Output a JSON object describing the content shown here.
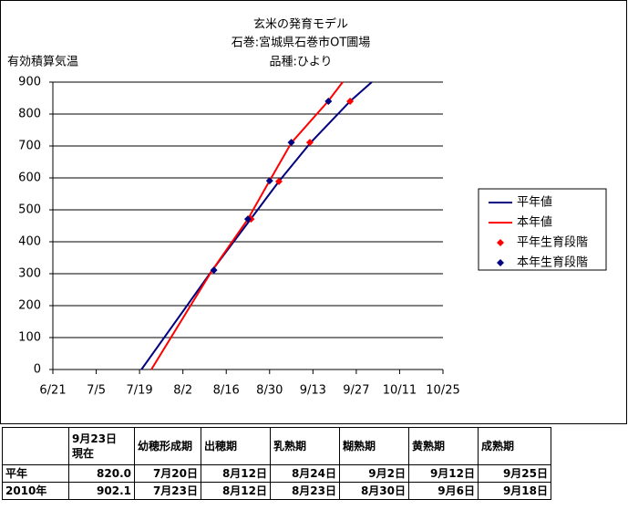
{
  "chart_data": {
    "type": "line",
    "title": "玄米の発育モデル",
    "subtitle": [
      "石巻:宮城県石巻市OT圃場",
      "品種:ひより"
    ],
    "y_label": "有効積算気温",
    "xlim": [
      172,
      298
    ],
    "xticks": [
      {
        "value": 172,
        "label": "6/21"
      },
      {
        "value": 186,
        "label": "7/5"
      },
      {
        "value": 200,
        "label": "7/19"
      },
      {
        "value": 214,
        "label": "8/2"
      },
      {
        "value": 228,
        "label": "8/16"
      },
      {
        "value": 242,
        "label": "8/30"
      },
      {
        "value": 256,
        "label": "9/13"
      },
      {
        "value": 270,
        "label": "9/27"
      },
      {
        "value": 284,
        "label": "10/11"
      },
      {
        "value": 298,
        "label": "10/25"
      }
    ],
    "ylim": [
      0,
      900
    ],
    "yticks": [
      0,
      100,
      200,
      300,
      400,
      500,
      600,
      700,
      800,
      900
    ],
    "grid": true,
    "legend": "right",
    "series": [
      {
        "name": "平年値",
        "color": "#000080",
        "style": "line",
        "x": [
          200.6,
          223.5,
          235.9,
          245,
          255.3,
          268,
          275
        ],
        "values": [
          0,
          311,
          471,
          589,
          711,
          840,
          900
        ]
      },
      {
        "name": "本年値",
        "color": "#ff0000",
        "style": "line",
        "x": [
          203.8,
          223.5,
          235,
          242,
          249.1,
          260.9,
          265.6
        ],
        "values": [
          0,
          311,
          471,
          591,
          711,
          840,
          900
        ]
      },
      {
        "name": "平年生育段階",
        "color": "#ff0000",
        "style": "markers",
        "x": [
          236,
          245,
          255,
          268
        ],
        "values": [
          471,
          589,
          711,
          840
        ]
      },
      {
        "name": "本年生育段階",
        "color": "#000080",
        "style": "markers",
        "x": [
          224,
          235,
          242,
          249,
          261
        ],
        "values": [
          311,
          471,
          591,
          711,
          840
        ]
      }
    ]
  },
  "table": {
    "header": [
      "",
      "9月23日\n現在",
      "幼穂形成期",
      "出穂期",
      "乳熟期",
      "糊熟期",
      "黄熟期",
      "成熟期"
    ],
    "rows": [
      [
        "平年",
        "820.0",
        "7月20日",
        "8月12日",
        "8月24日",
        "9月2日",
        "9月12日",
        "9月25日"
      ],
      [
        "2010年",
        "902.1",
        "7月23日",
        "8月12日",
        "8月23日",
        "8月30日",
        "9月6日",
        "9月18日"
      ]
    ]
  }
}
